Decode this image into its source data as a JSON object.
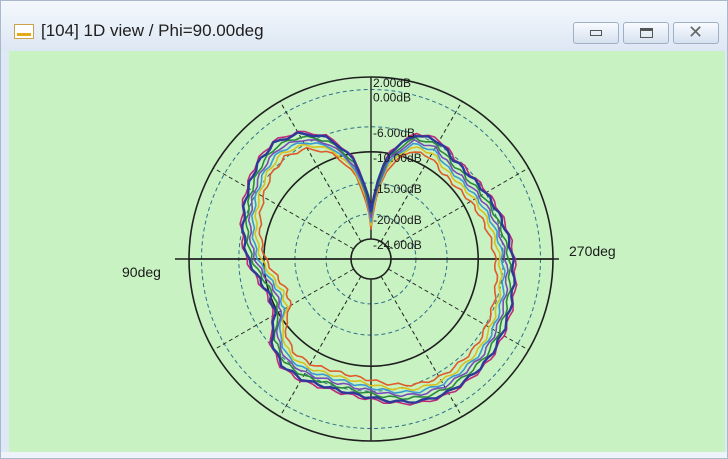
{
  "window": {
    "title": "[104] 1D view / Phi=90.00deg",
    "minimize_icon": "minimize-icon",
    "maximize_icon": "maximize-icon",
    "close_icon": "close-icon"
  },
  "colors": {
    "plot_background": "#c8f2c2",
    "grid": "#1f1f1f"
  },
  "chart_data": {
    "type": "polar",
    "title": "",
    "angle_labels": {
      "left": "90deg",
      "right": "270deg"
    },
    "radial_ticks": [
      "2.00dB",
      "0.00dB",
      "-6.00dB",
      "-10.00dB",
      "-15.00dB",
      "-20.00dB",
      "-24.00dB"
    ],
    "r_range_db": [
      -24,
      2
    ],
    "angle_direction": "counterclockwise-from-top",
    "series": [
      {
        "color": "#2b3a9a",
        "angle_deg": [
          0,
          10,
          20,
          30,
          40,
          50,
          60,
          70,
          80,
          90,
          100,
          110,
          120,
          130,
          140,
          150,
          160,
          170,
          180,
          190,
          200,
          210,
          220,
          230,
          240,
          250,
          260,
          270,
          280,
          290,
          300,
          310,
          320,
          330,
          340,
          350
        ],
        "gain_db": [
          -19.5,
          -11.0,
          -6.5,
          -4.0,
          -3.0,
          -3.5,
          -4.5,
          -5.5,
          -6.5,
          -7.5,
          -9.0,
          -10.0,
          -9.5,
          -6.5,
          -5.0,
          -5.0,
          -5.5,
          -5.5,
          -5.0,
          -4.0,
          -3.0,
          -2.5,
          -2.5,
          -2.5,
          -3.0,
          -3.5,
          -4.0,
          -4.5,
          -5.0,
          -5.5,
          -6.0,
          -6.5,
          -6.5,
          -5.5,
          -6.0,
          -10.0
        ]
      },
      {
        "color": "#c0287a",
        "offset_db": 0.3
      },
      {
        "color": "#2a8a3a",
        "offset_db": -0.6
      },
      {
        "color": "#7a4ab8",
        "offset_db": -1.1
      },
      {
        "color": "#3a9ad0",
        "offset_db": -1.6
      },
      {
        "color": "#d8c020",
        "offset_db": -2.1
      },
      {
        "color": "#e05a2a",
        "offset_db": -2.8
      }
    ],
    "grid": true,
    "legend": "none"
  }
}
